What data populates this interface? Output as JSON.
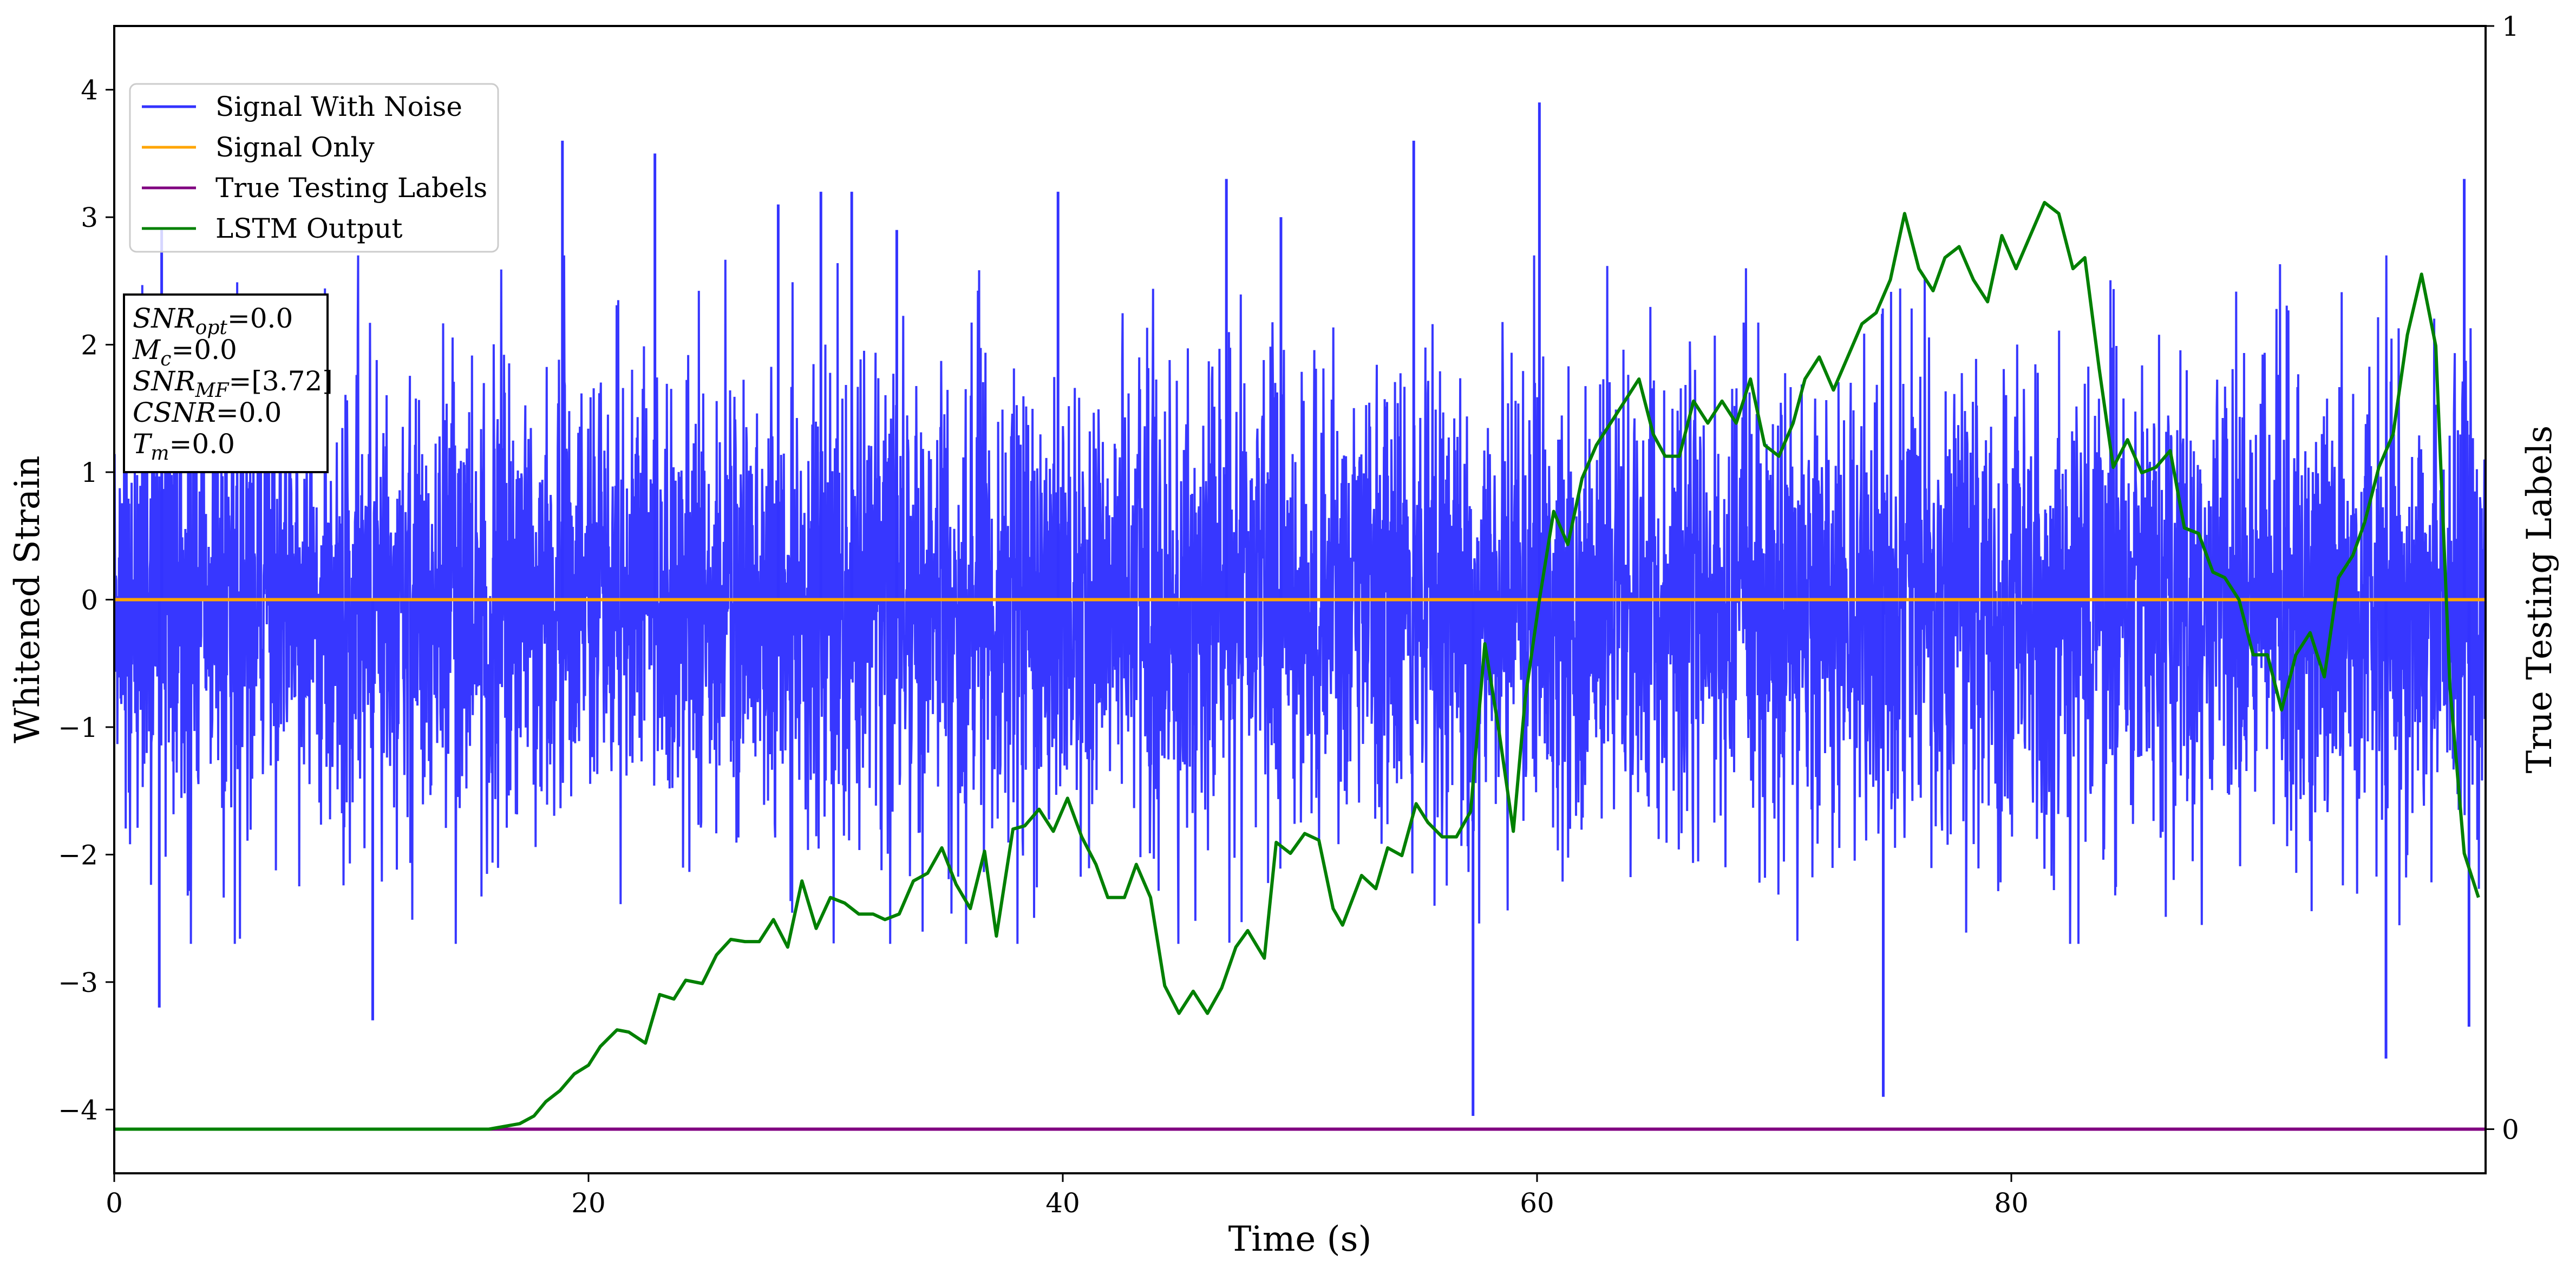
{
  "chart_data": {
    "type": "line",
    "xlabel": "Time (s)",
    "ylabel": "Whitened Strain",
    "ylabel_right": "True Testing Labels",
    "xlim": [
      0,
      100
    ],
    "ylim": [
      -4.5,
      4.5
    ],
    "ylim_right": [
      -0.04,
      1.0
    ],
    "x_ticks": [
      0,
      20,
      40,
      60,
      80
    ],
    "x_tick_labels": [
      "0",
      "20",
      "40",
      "60",
      "80"
    ],
    "y_ticks": [
      -4,
      -3,
      -2,
      -1,
      0,
      1,
      2,
      3,
      4
    ],
    "y_tick_labels": [
      "−4",
      "−3",
      "−2",
      "−1",
      "0",
      "1",
      "2",
      "3",
      "4"
    ],
    "y_right_ticks": [
      0,
      1
    ],
    "y_right_tick_labels": [
      "0",
      "1"
    ],
    "grid": false,
    "legend_position": "upper-left",
    "annotation": {
      "lines": [
        {
          "var": "SNR",
          "sub": "opt",
          "value": "=0.0"
        },
        {
          "var": "M",
          "sub": "c",
          "value": "=0.0"
        },
        {
          "var": "SNR",
          "sub": "MF",
          "value": "=[3.72]"
        },
        {
          "var": "CSNR",
          "sub": "",
          "value": "=0.0"
        },
        {
          "var": "T",
          "sub": "m",
          "value": "=0.0"
        }
      ]
    },
    "series": [
      {
        "name": "Signal With Noise",
        "color": "#3333ff",
        "axis": "left",
        "x_range": [
          0,
          100
        ],
        "noise_std": 0.9,
        "spikes": [
          {
            "x": 2.0,
            "y": 2.9
          },
          {
            "x": 1.9,
            "y": -3.2
          },
          {
            "x": 10.9,
            "y": -3.3
          },
          {
            "x": 18.9,
            "y": 3.6
          },
          {
            "x": 22.8,
            "y": 3.5
          },
          {
            "x": 28.0,
            "y": 3.1
          },
          {
            "x": 29.8,
            "y": 3.2
          },
          {
            "x": 31.1,
            "y": 3.2
          },
          {
            "x": 33.0,
            "y": 2.9
          },
          {
            "x": 39.8,
            "y": 3.2
          },
          {
            "x": 46.9,
            "y": 3.3
          },
          {
            "x": 49.2,
            "y": 3.0
          },
          {
            "x": 54.8,
            "y": 3.6
          },
          {
            "x": 57.3,
            "y": -4.05
          },
          {
            "x": 60.1,
            "y": 3.9
          },
          {
            "x": 74.6,
            "y": -3.9
          },
          {
            "x": 95.8,
            "y": -3.6
          },
          {
            "x": 99.3,
            "y": -3.35
          },
          {
            "x": 99.1,
            "y": 3.3
          }
        ]
      },
      {
        "name": "Signal Only",
        "color": "#ffa500",
        "axis": "left",
        "x": [
          0,
          100
        ],
        "y": [
          0.0,
          0.0
        ]
      },
      {
        "name": "True Testing Labels",
        "color": "#800080",
        "axis": "right",
        "x": [
          0,
          100
        ],
        "y": [
          0,
          0
        ]
      },
      {
        "name": "LSTM Output",
        "color": "#008000",
        "axis": "right",
        "x": [
          0,
          15.8,
          17.1,
          17.7,
          18.2,
          18.8,
          19.4,
          20.0,
          20.5,
          21.2,
          21.7,
          22.4,
          23.0,
          23.6,
          24.1,
          24.8,
          25.4,
          26.0,
          26.6,
          27.2,
          27.8,
          28.4,
          29.0,
          29.6,
          30.2,
          30.8,
          31.4,
          32.0,
          32.5,
          33.1,
          33.7,
          34.3,
          34.9,
          35.5,
          36.1,
          36.7,
          37.2,
          37.9,
          38.4,
          39.0,
          39.6,
          40.2,
          40.8,
          41.4,
          41.9,
          42.6,
          43.1,
          43.7,
          44.3,
          44.9,
          45.5,
          46.1,
          46.7,
          47.3,
          47.8,
          48.5,
          49.0,
          49.6,
          50.2,
          50.8,
          51.4,
          51.8,
          52.6,
          53.2,
          53.7,
          54.3,
          54.9,
          55.4,
          56.0,
          56.6,
          57.2,
          57.8,
          58.4,
          59.0,
          59.5,
          60.1,
          60.7,
          61.3,
          61.9,
          62.5,
          63.1,
          63.7,
          64.3,
          64.9,
          65.4,
          66.0,
          66.6,
          67.2,
          67.8,
          68.4,
          69.0,
          69.6,
          70.2,
          70.8,
          71.3,
          71.9,
          72.5,
          73.1,
          73.7,
          74.3,
          74.9,
          75.5,
          76.1,
          76.7,
          77.2,
          77.8,
          78.4,
          79.0,
          79.6,
          80.2,
          80.8,
          81.4,
          82.0,
          82.6,
          83.1,
          83.7,
          84.3,
          84.9,
          85.5,
          86.1,
          86.7,
          87.3,
          87.9,
          88.5,
          89.0,
          89.6,
          90.2,
          90.8,
          91.4,
          92.0,
          92.6,
          93.2,
          93.8,
          94.4,
          94.9,
          95.5,
          96.1,
          96.7,
          97.3,
          97.9,
          98.5,
          99.1,
          99.7
        ],
        "y": [
          0.0,
          0.0,
          0.005,
          0.012,
          0.025,
          0.035,
          0.05,
          0.058,
          0.075,
          0.09,
          0.088,
          0.078,
          0.122,
          0.118,
          0.135,
          0.132,
          0.158,
          0.172,
          0.17,
          0.17,
          0.19,
          0.165,
          0.225,
          0.182,
          0.21,
          0.205,
          0.195,
          0.195,
          0.19,
          0.195,
          0.225,
          0.232,
          0.255,
          0.222,
          0.2,
          0.252,
          0.175,
          0.272,
          0.275,
          0.29,
          0.27,
          0.3,
          0.265,
          0.24,
          0.21,
          0.21,
          0.24,
          0.21,
          0.13,
          0.105,
          0.125,
          0.105,
          0.128,
          0.165,
          0.18,
          0.155,
          0.26,
          0.25,
          0.268,
          0.262,
          0.2,
          0.185,
          0.23,
          0.218,
          0.255,
          0.248,
          0.295,
          0.278,
          0.265,
          0.265,
          0.288,
          0.44,
          0.36,
          0.27,
          0.39,
          0.48,
          0.56,
          0.53,
          0.59,
          0.62,
          0.64,
          0.66,
          0.68,
          0.63,
          0.61,
          0.61,
          0.66,
          0.64,
          0.66,
          0.64,
          0.68,
          0.62,
          0.61,
          0.64,
          0.68,
          0.7,
          0.67,
          0.7,
          0.73,
          0.74,
          0.77,
          0.83,
          0.78,
          0.76,
          0.79,
          0.8,
          0.77,
          0.75,
          0.81,
          0.78,
          0.81,
          0.84,
          0.83,
          0.78,
          0.79,
          0.69,
          0.6,
          0.625,
          0.595,
          0.6,
          0.615,
          0.545,
          0.54,
          0.505,
          0.5,
          0.48,
          0.43,
          0.43,
          0.38,
          0.43,
          0.45,
          0.41,
          0.5,
          0.52,
          0.55,
          0.6,
          0.63,
          0.72,
          0.775,
          0.71,
          0.4,
          0.25,
          0.21
        ],
        "note": "y axis on right scale"
      }
    ]
  }
}
